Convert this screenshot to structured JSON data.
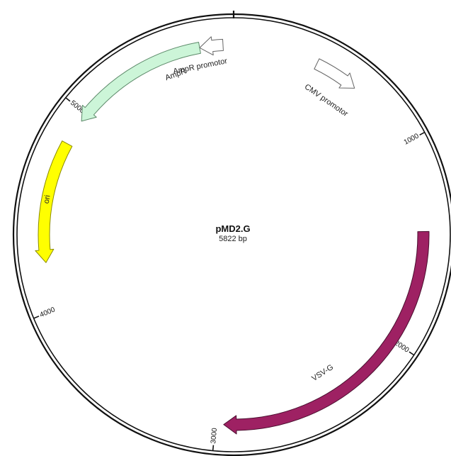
{
  "plasmid": {
    "name": "pMD2.G",
    "size_label": "5822 bp",
    "length_bp": 5822
  },
  "ticks": [
    {
      "bp": 0,
      "label": ""
    },
    {
      "bp": 1000,
      "label": "1000"
    },
    {
      "bp": 2000,
      "label": "2000"
    },
    {
      "bp": 3000,
      "label": "3000"
    },
    {
      "bp": 4000,
      "label": "4000"
    },
    {
      "bp": 5000,
      "label": "5000"
    }
  ],
  "features": [
    {
      "id": "cmv-promotor",
      "label": "CMV promotor",
      "start_bp": 420,
      "end_bp": 640,
      "direction": "forward",
      "fill": "#ffffff",
      "stroke": "#666666"
    },
    {
      "id": "vsv-g",
      "label": "VSV-G",
      "start_bp": 1440,
      "end_bp": 2960,
      "direction": "forward",
      "fill": "#9e2163",
      "stroke": "#4a0f2f"
    },
    {
      "id": "ori",
      "label": "ori",
      "start_bp": 4230,
      "end_bp": 4830,
      "direction": "reverse",
      "fill": "#ffff00",
      "stroke": "#8a8a00"
    },
    {
      "id": "ampr",
      "label": "AmpR",
      "start_bp": 4960,
      "end_bp": 5655,
      "direction": "reverse",
      "fill": "#ccf5d8",
      "stroke": "#5d8a6a"
    },
    {
      "id": "ampr-promotor",
      "label": "AmpR promotor",
      "start_bp": 5655,
      "end_bp": 5770,
      "direction": "reverse",
      "fill": "#ffffff",
      "stroke": "#666666"
    }
  ]
}
